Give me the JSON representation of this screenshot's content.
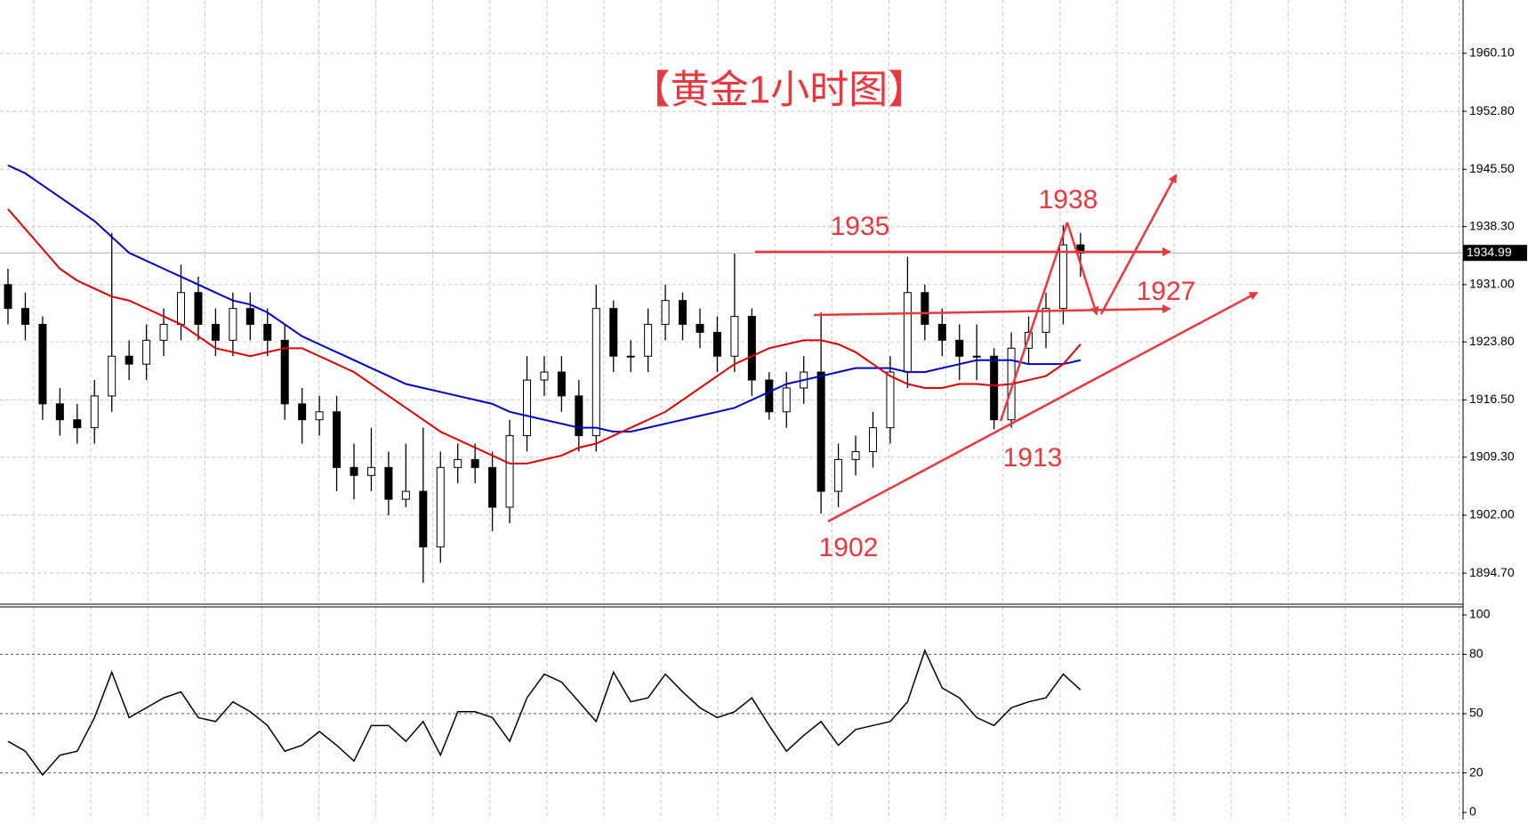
{
  "chart_data": [
    {
      "type": "candlestick",
      "title": "【黄金1小时图】",
      "open": [
        1931,
        1928,
        1926,
        1916,
        1914,
        1913,
        1917,
        1922,
        1921,
        1924,
        1926,
        1930,
        1926,
        1924,
        1928,
        1926,
        1924,
        1916,
        1914,
        1915,
        1908,
        1907,
        1908,
        1904,
        1905,
        1898,
        1908,
        1909,
        1908,
        1903,
        1912,
        1919,
        1920,
        1917,
        1912,
        1928,
        1922,
        1922,
        1926,
        1929,
        1926,
        1925,
        1922,
        1927,
        1919,
        1915,
        1918,
        1920,
        1905,
        1909,
        1910,
        1913,
        1920,
        1930,
        1926,
        1924,
        1922,
        1922,
        1914,
        1923,
        1925,
        1928,
        1936
      ],
      "high": [
        1933,
        1930,
        1927,
        1918,
        1916,
        1919,
        1937.5,
        1924,
        1926,
        1928,
        1933.5,
        1932,
        1928,
        1930,
        1930,
        1928,
        1926,
        1918,
        1917,
        1917,
        1911,
        1913,
        1910,
        1911,
        1913,
        1910,
        1911,
        1911,
        1910,
        1914,
        1922,
        1922,
        1922,
        1919,
        1931,
        1929,
        1924,
        1928,
        1931,
        1930,
        1928,
        1927,
        1934.9,
        1928,
        1920,
        1920,
        1922,
        1927.5,
        1911,
        1912,
        1915,
        1922,
        1934.5,
        1931,
        1928,
        1926,
        1926,
        1923,
        1925,
        1927,
        1930,
        1938.5,
        1937.5
      ],
      "low": [
        1926,
        1924,
        1914,
        1912,
        1911,
        1911,
        1915,
        1919,
        1919,
        1922,
        1924,
        1924,
        1922,
        1922,
        1924,
        1922,
        1914,
        1911,
        1912,
        1905,
        1904,
        1905,
        1902,
        1903,
        1893.5,
        1896,
        1906,
        1906,
        1900,
        1901,
        1910,
        1917,
        1915,
        1910,
        1910,
        1920,
        1920,
        1920,
        1924,
        1924,
        1923,
        1920,
        1920,
        1917,
        1914,
        1913,
        1916,
        1902.2,
        1903,
        1907,
        1908,
        1911,
        1918,
        1924,
        1922,
        1919,
        1919,
        1912.8,
        1913,
        1921,
        1923,
        1926,
        1932
      ],
      "close": [
        1928,
        1926,
        1916,
        1914,
        1913,
        1917,
        1922,
        1921,
        1924,
        1926,
        1930,
        1926,
        1924,
        1928,
        1926,
        1924,
        1916,
        1914,
        1915,
        1908,
        1907,
        1908,
        1904,
        1905,
        1898,
        1908,
        1909,
        1908,
        1903,
        1912,
        1919,
        1920,
        1917,
        1912,
        1928,
        1922,
        1922,
        1926,
        1929,
        1926,
        1925,
        1922,
        1927,
        1919,
        1915,
        1918,
        1920,
        1905,
        1909,
        1910,
        1913,
        1920,
        1930,
        1926,
        1924,
        1922,
        1922,
        1914,
        1923,
        1925,
        1928,
        1936,
        1934.99
      ],
      "overlays": [
        {
          "color": "#0000cc",
          "values": [
            1946,
            1945,
            1943.5,
            1942,
            1940.5,
            1939,
            1937,
            1935,
            1934,
            1933,
            1932,
            1931,
            1930,
            1929,
            1928.5,
            1927.5,
            1926,
            1924.5,
            1923.5,
            1922.5,
            1921.5,
            1920.5,
            1919.5,
            1918.5,
            1918,
            1917.5,
            1917,
            1916.5,
            1916,
            1915,
            1914.5,
            1914,
            1913.5,
            1913,
            1913,
            1912.5,
            1912.5,
            1913,
            1913.5,
            1914,
            1914.5,
            1915,
            1915.5,
            1916.5,
            1917.5,
            1918.5,
            1919,
            1919.5,
            1920,
            1920.5,
            1920.5,
            1920.5,
            1920,
            1920,
            1920.5,
            1921,
            1921.5,
            1921.5,
            1921.5,
            1921,
            1921,
            1921,
            1921.5
          ]
        },
        {
          "color": "#dd0000",
          "values": [
            1940.5,
            1938,
            1935.5,
            1933,
            1931.5,
            1930.5,
            1929.5,
            1929,
            1928,
            1927,
            1926,
            1924.5,
            1923,
            1922.5,
            1922,
            1922.5,
            1923,
            1923,
            1922,
            1921,
            1920,
            1918.5,
            1917,
            1915.5,
            1914,
            1912.5,
            1911.5,
            1910.5,
            1909.5,
            1908.5,
            1908.5,
            1909,
            1909.5,
            1910.5,
            1911,
            1912,
            1913,
            1914,
            1915,
            1916.5,
            1918,
            1919.5,
            1921,
            1922,
            1923,
            1923.5,
            1924,
            1924,
            1923.5,
            1922.5,
            1921,
            1919.5,
            1918.5,
            1918,
            1918,
            1918.5,
            1918.5,
            1918.3,
            1918.5,
            1919,
            1919.5,
            1921,
            1923.5
          ]
        }
      ],
      "last_price": 1934.99,
      "ylim": [
        1890.8,
        1966.8
      ],
      "yticks": [
        {
          "value": 1894.7,
          "label": "1894.70"
        },
        {
          "value": 1902,
          "label": "1902.00"
        },
        {
          "value": 1909.3,
          "label": "1909.30"
        },
        {
          "value": 1916.5,
          "label": "1916.50"
        },
        {
          "value": 1923.8,
          "label": "1923.80"
        },
        {
          "value": 1931,
          "label": "1931.00"
        },
        {
          "value": 1938.3,
          "label": "1938.30"
        },
        {
          "value": 1945.5,
          "label": "1945.50"
        },
        {
          "value": 1952.8,
          "label": "1952.80"
        },
        {
          "value": 1960.1,
          "label": "1960.10"
        }
      ],
      "grid": true,
      "annotations": [
        "1935",
        "1938",
        "1927",
        "1913",
        "1902"
      ]
    },
    {
      "type": "line",
      "color": "#000000",
      "values": [
        36,
        31,
        19,
        29,
        31,
        48,
        71,
        48,
        53,
        58,
        61,
        48,
        46,
        56,
        51,
        44,
        31,
        34,
        41,
        34,
        26,
        44,
        44,
        36,
        46,
        29,
        51,
        51,
        48,
        36,
        58,
        70,
        66,
        56,
        46,
        71,
        56,
        58,
        70,
        61,
        53,
        48,
        51,
        58,
        44,
        31,
        39,
        46,
        34,
        42,
        44,
        46,
        56,
        82,
        63,
        58,
        48,
        44,
        53,
        56,
        58,
        70,
        62
      ],
      "ylim": [
        0,
        100
      ],
      "yticks": [
        0,
        20,
        50,
        80,
        100
      ],
      "grid": true
    }
  ]
}
